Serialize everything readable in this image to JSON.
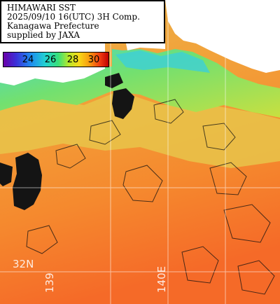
{
  "title": {
    "lines": [
      "HIMAWARI SST",
      "2025/09/10 16(UTC) 3H Comp.",
      "Kanagawa Prefecture",
      "supplied by JAXA"
    ]
  },
  "colorbar": {
    "labels": [
      "24",
      "26",
      "28",
      "30"
    ],
    "colors": [
      "#6a00a8",
      "#1f8cf0",
      "#38e07a",
      "#f8d818",
      "#f89a10",
      "#c00000"
    ]
  },
  "grid_labels": {
    "lat": "32N",
    "lon_west": "139",
    "lon_east": "140E"
  },
  "colors": {
    "land": "#ffffff",
    "cloud": "#141414",
    "grid": "#ffffff",
    "warm_sea": "#f28a30",
    "coastal_sea": "#7ee070"
  }
}
